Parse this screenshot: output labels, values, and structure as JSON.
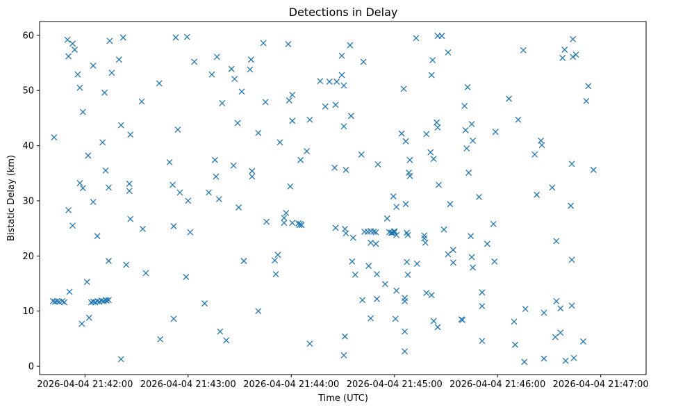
{
  "chart_data": {
    "type": "scatter",
    "title": "Detections in Delay",
    "xlabel": "Time (UTC)",
    "ylabel": "Bistatic Delay (km)",
    "x_unit": "minutes since 2026-04-04 21:42:00",
    "xlim": [
      -0.44,
      5.44
    ],
    "ylim": [
      -1.5,
      62.5
    ],
    "xticks": [
      {
        "value": 0,
        "label": "2026-04-04 21:42:00"
      },
      {
        "value": 1,
        "label": "2026-04-04 21:43:00"
      },
      {
        "value": 2,
        "label": "2026-04-04 21:44:00"
      },
      {
        "value": 3,
        "label": "2026-04-04 21:45:00"
      },
      {
        "value": 4,
        "label": "2026-04-04 21:46:00"
      },
      {
        "value": 5,
        "label": "2026-04-04 21:47:00"
      }
    ],
    "yticks": [
      0,
      10,
      20,
      30,
      40,
      50,
      60
    ],
    "marker": "x",
    "color": "#1f77b4",
    "series": [
      {
        "name": "detections",
        "points": [
          [
            -0.3,
            41.5
          ],
          [
            -0.31,
            11.8
          ],
          [
            -0.29,
            11.7
          ],
          [
            -0.27,
            11.8
          ],
          [
            -0.25,
            11.7
          ],
          [
            -0.22,
            11.8
          ],
          [
            -0.2,
            11.6
          ],
          [
            -0.17,
            59.2
          ],
          [
            -0.16,
            56.2
          ],
          [
            -0.16,
            28.3
          ],
          [
            -0.15,
            13.5
          ],
          [
            -0.12,
            58.5
          ],
          [
            -0.12,
            25.5
          ],
          [
            -0.1,
            57.4
          ],
          [
            -0.07,
            52.9
          ],
          [
            -0.05,
            50.5
          ],
          [
            -0.05,
            33.2
          ],
          [
            -0.02,
            32.3
          ],
          [
            -0.03,
            7.7
          ],
          [
            -0.02,
            46.1
          ],
          [
            0.02,
            15.3
          ],
          [
            0.03,
            38.2
          ],
          [
            0.04,
            8.8
          ],
          [
            0.06,
            11.6
          ],
          [
            0.08,
            11.7
          ],
          [
            0.1,
            11.6
          ],
          [
            0.12,
            11.8
          ],
          [
            0.14,
            11.7
          ],
          [
            0.16,
            11.9
          ],
          [
            0.18,
            11.8
          ],
          [
            0.2,
            12.0
          ],
          [
            0.21,
            11.9
          ],
          [
            0.23,
            12.0
          ],
          [
            0.08,
            54.5
          ],
          [
            0.08,
            29.8
          ],
          [
            0.12,
            23.6
          ],
          [
            0.17,
            40.6
          ],
          [
            0.19,
            49.6
          ],
          [
            0.2,
            35.5
          ],
          [
            0.23,
            32.4
          ],
          [
            0.23,
            19.1
          ],
          [
            0.24,
            59.0
          ],
          [
            0.26,
            53.2
          ],
          [
            0.33,
            55.6
          ],
          [
            0.35,
            43.7
          ],
          [
            0.35,
            1.3
          ],
          [
            0.37,
            59.6
          ],
          [
            0.4,
            18.4
          ],
          [
            0.44,
            42.0
          ],
          [
            0.43,
            33.1
          ],
          [
            0.43,
            31.8
          ],
          [
            0.44,
            26.7
          ],
          [
            0.55,
            48.0
          ],
          [
            0.56,
            24.9
          ],
          [
            0.59,
            16.9
          ],
          [
            0.72,
            51.3
          ],
          [
            0.73,
            4.9
          ],
          [
            0.82,
            37.0
          ],
          [
            0.85,
            32.9
          ],
          [
            0.86,
            25.4
          ],
          [
            0.86,
            8.6
          ],
          [
            0.88,
            59.6
          ],
          [
            0.9,
            42.9
          ],
          [
            0.92,
            31.5
          ],
          [
            0.98,
            16.2
          ],
          [
            0.99,
            59.7
          ],
          [
            1.0,
            30.0
          ],
          [
            1.02,
            24.3
          ],
          [
            1.06,
            55.2
          ],
          [
            1.16,
            11.4
          ],
          [
            1.2,
            31.5
          ],
          [
            1.23,
            52.9
          ],
          [
            1.26,
            37.4
          ],
          [
            1.27,
            34.4
          ],
          [
            1.28,
            56.1
          ],
          [
            1.3,
            30.3
          ],
          [
            1.31,
            6.3
          ],
          [
            1.33,
            47.7
          ],
          [
            1.37,
            4.7
          ],
          [
            1.42,
            53.9
          ],
          [
            1.44,
            36.4
          ],
          [
            1.45,
            52.1
          ],
          [
            1.48,
            44.1
          ],
          [
            1.49,
            28.8
          ],
          [
            1.52,
            49.8
          ],
          [
            1.54,
            19.1
          ],
          [
            1.6,
            53.8
          ],
          [
            1.61,
            55.6
          ],
          [
            1.62,
            35.4
          ],
          [
            1.62,
            34.4
          ],
          [
            1.68,
            42.3
          ],
          [
            1.68,
            10.0
          ],
          [
            1.73,
            58.6
          ],
          [
            1.75,
            47.9
          ],
          [
            1.76,
            26.2
          ],
          [
            1.85,
            16.7
          ],
          [
            1.84,
            19.2
          ],
          [
            1.87,
            20.2
          ],
          [
            1.89,
            40.6
          ],
          [
            1.93,
            26.0
          ],
          [
            1.93,
            26.9
          ],
          [
            1.95,
            27.8
          ],
          [
            1.97,
            58.4
          ],
          [
            1.98,
            48.2
          ],
          [
            1.99,
            32.6
          ],
          [
            2.01,
            49.2
          ],
          [
            2.01,
            44.5
          ],
          [
            2.01,
            26.0
          ],
          [
            2.07,
            25.9
          ],
          [
            2.08,
            25.6
          ],
          [
            2.09,
            25.8
          ],
          [
            2.1,
            25.6
          ],
          [
            2.09,
            37.4
          ],
          [
            2.15,
            39.0
          ],
          [
            2.18,
            44.7
          ],
          [
            2.18,
            4.1
          ],
          [
            2.28,
            51.7
          ],
          [
            2.33,
            47.1
          ],
          [
            2.37,
            51.6
          ],
          [
            2.42,
            36.0
          ],
          [
            2.43,
            25.1
          ],
          [
            2.43,
            47.4
          ],
          [
            2.44,
            51.6
          ],
          [
            2.49,
            52.8
          ],
          [
            2.49,
            56.3
          ],
          [
            2.51,
            50.9
          ],
          [
            2.51,
            43.5
          ],
          [
            2.52,
            24.9
          ],
          [
            2.53,
            24.1
          ],
          [
            2.53,
            35.6
          ],
          [
            2.52,
            5.4
          ],
          [
            2.51,
            2.0
          ],
          [
            2.57,
            58.2
          ],
          [
            2.58,
            45.4
          ],
          [
            2.59,
            19.0
          ],
          [
            2.6,
            23.3
          ],
          [
            2.62,
            16.6
          ],
          [
            2.68,
            38.4
          ],
          [
            2.7,
            55.2
          ],
          [
            2.69,
            12.0
          ],
          [
            2.71,
            24.4
          ],
          [
            2.74,
            24.4
          ],
          [
            2.75,
            18.2
          ],
          [
            2.77,
            24.5
          ],
          [
            2.77,
            22.4
          ],
          [
            2.77,
            8.7
          ],
          [
            2.8,
            24.4
          ],
          [
            2.82,
            24.3
          ],
          [
            2.82,
            22.2
          ],
          [
            2.83,
            16.7
          ],
          [
            2.84,
            36.6
          ],
          [
            2.83,
            12.2
          ],
          [
            2.91,
            14.9
          ],
          [
            2.93,
            26.8
          ],
          [
            2.95,
            24.3
          ],
          [
            2.98,
            24.2
          ],
          [
            3.0,
            24.3
          ],
          [
            2.97,
            24.2
          ],
          [
            2.99,
            30.8
          ],
          [
            3.02,
            13.7
          ],
          [
            3.01,
            8.6
          ],
          [
            3.02,
            23.8
          ],
          [
            3.0,
            24.5
          ],
          [
            3.02,
            28.9
          ],
          [
            3.07,
            42.2
          ],
          [
            3.09,
            50.3
          ],
          [
            3.11,
            40.8
          ],
          [
            3.1,
            12.4
          ],
          [
            3.1,
            11.8
          ],
          [
            3.1,
            6.3
          ],
          [
            3.1,
            2.7
          ],
          [
            3.11,
            29.4
          ],
          [
            3.12,
            24.2
          ],
          [
            3.13,
            23.8
          ],
          [
            3.12,
            18.9
          ],
          [
            3.13,
            16.6
          ],
          [
            3.14,
            35.1
          ],
          [
            3.15,
            34.5
          ],
          [
            3.15,
            37.4
          ],
          [
            3.21,
            59.5
          ],
          [
            3.22,
            18.6
          ],
          [
            3.29,
            23.2
          ],
          [
            3.29,
            23.7
          ],
          [
            3.3,
            22.4
          ],
          [
            3.31,
            42.1
          ],
          [
            3.31,
            13.3
          ],
          [
            3.35,
            38.8
          ],
          [
            3.36,
            52.8
          ],
          [
            3.37,
            55.5
          ],
          [
            3.38,
            37.6
          ],
          [
            3.36,
            12.9
          ],
          [
            3.38,
            8.2
          ],
          [
            3.41,
            44.2
          ],
          [
            3.42,
            43.3
          ],
          [
            3.42,
            59.9
          ],
          [
            3.42,
            7.1
          ],
          [
            3.43,
            32.9
          ],
          [
            3.46,
            59.9
          ],
          [
            3.48,
            24.8
          ],
          [
            3.52,
            56.9
          ],
          [
            3.52,
            20.3
          ],
          [
            3.54,
            29.4
          ],
          [
            3.57,
            18.8
          ],
          [
            3.57,
            21.1
          ],
          [
            3.65,
            8.5
          ],
          [
            3.66,
            8.4
          ],
          [
            3.68,
            47.2
          ],
          [
            3.69,
            42.8
          ],
          [
            3.7,
            39.5
          ],
          [
            3.71,
            50.6
          ],
          [
            3.72,
            35.1
          ],
          [
            3.75,
            43.9
          ],
          [
            3.74,
            23.6
          ],
          [
            3.75,
            19.8
          ],
          [
            3.76,
            17.9
          ],
          [
            3.76,
            40.9
          ],
          [
            3.82,
            30.7
          ],
          [
            3.85,
            13.4
          ],
          [
            3.85,
            10.9
          ],
          [
            3.85,
            4.6
          ],
          [
            3.9,
            22.2
          ],
          [
            3.96,
            25.8
          ],
          [
            3.97,
            19.0
          ],
          [
            3.98,
            42.5
          ],
          [
            4.11,
            48.5
          ],
          [
            4.16,
            8.1
          ],
          [
            4.17,
            3.9
          ],
          [
            4.2,
            44.7
          ],
          [
            4.25,
            57.3
          ],
          [
            4.26,
            0.8
          ],
          [
            4.27,
            10.4
          ],
          [
            4.36,
            38.4
          ],
          [
            4.38,
            31.1
          ],
          [
            4.42,
            40.9
          ],
          [
            4.43,
            40.1
          ],
          [
            4.45,
            9.7
          ],
          [
            4.45,
            1.4
          ],
          [
            4.53,
            32.4
          ],
          [
            4.56,
            5.3
          ],
          [
            4.57,
            22.7
          ],
          [
            4.57,
            11.8
          ],
          [
            4.61,
            10.5
          ],
          [
            4.61,
            6.1
          ],
          [
            4.63,
            55.9
          ],
          [
            4.65,
            57.4
          ],
          [
            4.66,
            1.0
          ],
          [
            4.71,
            29.1
          ],
          [
            4.72,
            36.7
          ],
          [
            4.72,
            11.0
          ],
          [
            4.72,
            19.3
          ],
          [
            4.73,
            59.3
          ],
          [
            4.73,
            56.1
          ],
          [
            4.74,
            1.5
          ],
          [
            4.76,
            56.5
          ],
          [
            4.83,
            4.5
          ],
          [
            4.86,
            48.1
          ],
          [
            4.88,
            50.8
          ],
          [
            4.93,
            35.6
          ]
        ]
      }
    ]
  }
}
